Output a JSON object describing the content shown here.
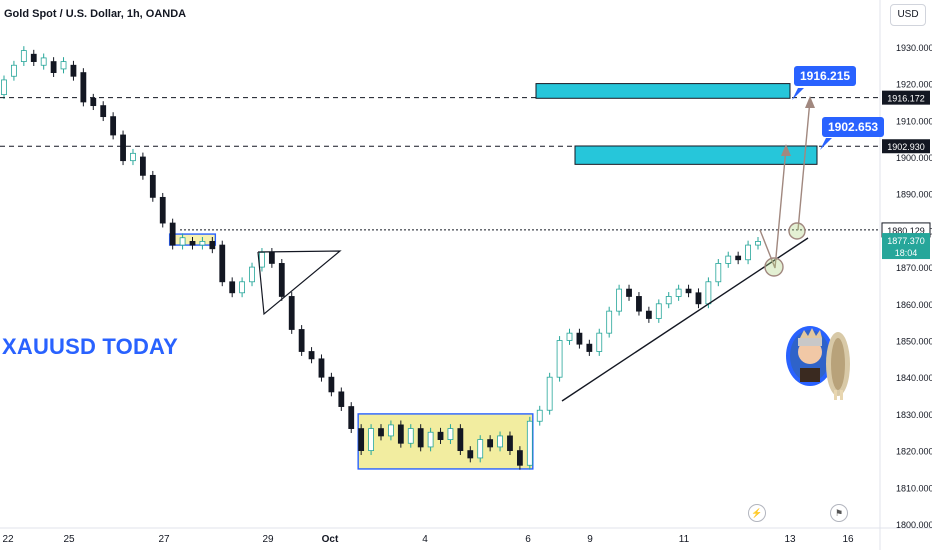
{
  "header": {
    "title": "Gold Spot / U.S. Dollar, 1h, OANDA",
    "currency": "USD"
  },
  "banner": {
    "text": "XAUUSD TODAY"
  },
  "callouts": [
    {
      "text": "1916.215"
    },
    {
      "text": "1902.653"
    }
  ],
  "colors": {
    "up": "#26a69a",
    "down": "#131722",
    "box_fill": "#f2eda0",
    "box_stroke": "#2962ff",
    "target_fill": "#26c6da",
    "arrow": "#a1887f",
    "price_tag": "#26a69a"
  },
  "price_tags": [
    {
      "text": "1916.172",
      "value": 1916.172,
      "style": "dark"
    },
    {
      "text": "1902.930",
      "value": 1902.93,
      "style": "dark"
    },
    {
      "text": "1880.129",
      "value": 1880.129,
      "style": "light"
    },
    {
      "text": "1877.370",
      "value": 1877.37,
      "style": "green",
      "sub": "18:04"
    }
  ],
  "icons": [
    "lightning-icon",
    "flag-icon"
  ],
  "chart_data": {
    "type": "candlestick",
    "title": "Gold Spot / U.S. Dollar, 1h, OANDA",
    "ylim": [
      1800,
      1940
    ],
    "y_ticks": [
      1800,
      1810,
      1820,
      1830,
      1840,
      1850,
      1860,
      1870,
      1880,
      1890,
      1900,
      1910,
      1920,
      1930
    ],
    "y_tick_labels": [
      "1800.000",
      "1810.000",
      "1820.000",
      "1830.000",
      "1840.000",
      "1850.000",
      "1860.000",
      "1870.000",
      "1880.000",
      "1890.000",
      "1900.000",
      "1910.000",
      "1920.000",
      "1930.000"
    ],
    "x_ticks": [
      "22",
      "25",
      "27",
      "29",
      "Oct",
      "4",
      "6",
      "9",
      "11",
      "13",
      "16"
    ],
    "price_path": [
      [
        1917,
        1921
      ],
      [
        1922,
        1925
      ],
      [
        1926,
        1929
      ],
      [
        1928,
        1926
      ],
      [
        1925,
        1927
      ],
      [
        1926,
        1923
      ],
      [
        1924,
        1926
      ],
      [
        1925,
        1922
      ],
      [
        1923,
        1915
      ],
      [
        1916,
        1914
      ],
      [
        1914,
        1911
      ],
      [
        1911,
        1906
      ],
      [
        1906,
        1899
      ],
      [
        1899,
        1901
      ],
      [
        1900,
        1895
      ],
      [
        1895,
        1889
      ],
      [
        1889,
        1882
      ],
      [
        1882,
        1876
      ],
      [
        1876,
        1878
      ],
      [
        1877,
        1876
      ],
      [
        1876,
        1877
      ],
      [
        1877,
        1875
      ],
      [
        1876,
        1866
      ],
      [
        1866,
        1863
      ],
      [
        1863,
        1866
      ],
      [
        1866,
        1870
      ],
      [
        1870,
        1874
      ],
      [
        1874,
        1871
      ],
      [
        1871,
        1862
      ],
      [
        1862,
        1853
      ],
      [
        1853,
        1847
      ],
      [
        1847,
        1845
      ],
      [
        1845,
        1840
      ],
      [
        1840,
        1836
      ],
      [
        1836,
        1832
      ],
      [
        1832,
        1826
      ],
      [
        1826,
        1820
      ],
      [
        1820,
        1826
      ],
      [
        1826,
        1824
      ],
      [
        1824,
        1827
      ],
      [
        1827,
        1822
      ],
      [
        1822,
        1826
      ],
      [
        1826,
        1821
      ],
      [
        1821,
        1825
      ],
      [
        1825,
        1823
      ],
      [
        1823,
        1826
      ],
      [
        1826,
        1820
      ],
      [
        1820,
        1818
      ],
      [
        1818,
        1823
      ],
      [
        1823,
        1821
      ],
      [
        1821,
        1824
      ],
      [
        1824,
        1820
      ],
      [
        1820,
        1816
      ],
      [
        1816,
        1828
      ],
      [
        1828,
        1831
      ],
      [
        1831,
        1840
      ],
      [
        1840,
        1850
      ],
      [
        1850,
        1852
      ],
      [
        1852,
        1849
      ],
      [
        1849,
        1847
      ],
      [
        1847,
        1852
      ],
      [
        1852,
        1858
      ],
      [
        1858,
        1864
      ],
      [
        1864,
        1862
      ],
      [
        1862,
        1858
      ],
      [
        1858,
        1856
      ],
      [
        1856,
        1860
      ],
      [
        1860,
        1862
      ],
      [
        1862,
        1864
      ],
      [
        1864,
        1863
      ],
      [
        1863,
        1860
      ],
      [
        1860,
        1866
      ],
      [
        1866,
        1871
      ],
      [
        1871,
        1873
      ],
      [
        1873,
        1872
      ],
      [
        1872,
        1876
      ],
      [
        1876,
        1877
      ]
    ],
    "boxes": [
      {
        "from": 1876,
        "to": 1879,
        "start_idx": 17,
        "end_idx": 21,
        "fill": false
      },
      {
        "from": 1815,
        "to": 1830,
        "start_idx": 36,
        "end_idx": 53,
        "fill": true
      }
    ],
    "targets": [
      {
        "from": 1916,
        "to": 1920
      },
      {
        "from": 1898,
        "to": 1903
      }
    ],
    "levels": [
      1916.172,
      1902.93,
      1880.129
    ]
  }
}
